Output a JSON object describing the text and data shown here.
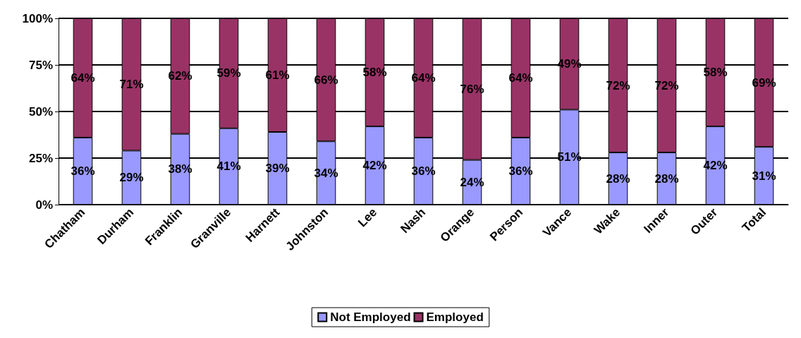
{
  "chart_data": {
    "type": "bar",
    "stacked": true,
    "categories": [
      "Chatham",
      "Durham",
      "Franklin",
      "Granville",
      "Harnett",
      "Johnston",
      "Lee",
      "Nash",
      "Orange",
      "Person",
      "Vance",
      "Wake",
      "Inner",
      "Outer",
      "Total"
    ],
    "series": [
      {
        "name": "Not Employed",
        "color": "#9999ff",
        "values": [
          36,
          29,
          38,
          41,
          39,
          34,
          42,
          36,
          24,
          36,
          51,
          28,
          28,
          42,
          31
        ],
        "value_labels": [
          "36%",
          "29%",
          "38%",
          "41%",
          "39%",
          "34%",
          "42%",
          "36%",
          "24%",
          "36%",
          "51%",
          "28%",
          "28%",
          "42%",
          "31%"
        ]
      },
      {
        "name": "Employed",
        "color": "#993366",
        "values": [
          64,
          71,
          62,
          59,
          61,
          66,
          58,
          64,
          76,
          64,
          49,
          72,
          72,
          58,
          69
        ],
        "value_labels": [
          "64%",
          "71%",
          "62%",
          "59%",
          "61%",
          "66%",
          "58%",
          "64%",
          "76%",
          "64%",
          "49%",
          "72%",
          "72%",
          "58%",
          "69%"
        ]
      }
    ],
    "ylim": [
      0,
      100
    ],
    "yticks": [
      {
        "value": 0,
        "label": "0%"
      },
      {
        "value": 25,
        "label": "25%"
      },
      {
        "value": 50,
        "label": "50%"
      },
      {
        "value": 75,
        "label": "75%"
      },
      {
        "value": 100,
        "label": "100%"
      }
    ],
    "grid": "y",
    "legend": "bottom"
  }
}
